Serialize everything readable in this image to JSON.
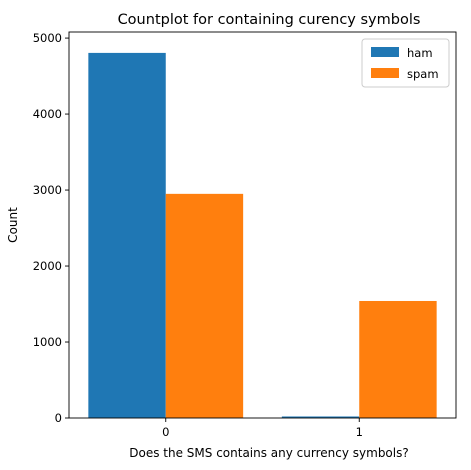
{
  "chart_data": {
    "type": "bar",
    "title": "Countplot for containing curency symbols",
    "xlabel": "Does the SMS contains any currency symbols?",
    "ylabel": "Count",
    "categories": [
      "0",
      "1"
    ],
    "series": [
      {
        "name": "ham",
        "values": [
          4805,
          20
        ],
        "color": "#1f77b4"
      },
      {
        "name": "spam",
        "values": [
          2950,
          1540
        ],
        "color": "#ff7f0e"
      }
    ],
    "ylim": [
      0,
      5000
    ],
    "yticks": [
      0,
      1000,
      2000,
      3000,
      4000,
      5000
    ],
    "grid": false,
    "legend_position": "top-right"
  }
}
